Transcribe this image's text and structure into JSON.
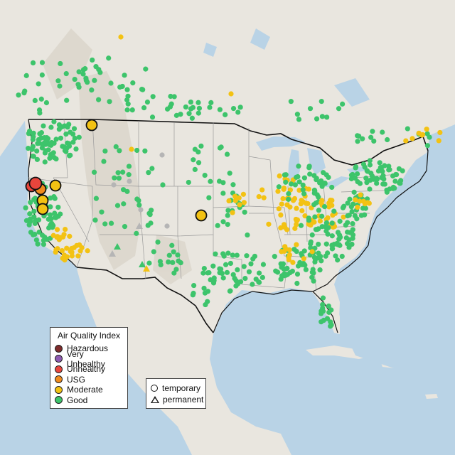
{
  "colors": {
    "ocean": "#b9d3e6",
    "land": "#e9e6df",
    "mountain_shade": "#d9d3c8",
    "hazardous": "#7e2b2b",
    "very_unhealthy": "#8e5ab2",
    "unhealthy": "#e8453c",
    "usg": "#f08b1d",
    "moderate": "#f3c213",
    "good": "#3dc46b",
    "no_data": "#b5b5b5"
  },
  "legend": {
    "title": "Air Quality Index",
    "items": [
      {
        "label": "Hazardous",
        "color": "#7e2b2b"
      },
      {
        "label": "Very Unhealthy",
        "color": "#8e5ab2"
      },
      {
        "label": "Unhealthy",
        "color": "#e8453c"
      },
      {
        "label": "USG",
        "color": "#f08b1d"
      },
      {
        "label": "Moderate",
        "color": "#f3c213"
      },
      {
        "label": "Good",
        "color": "#3dc46b"
      }
    ]
  },
  "shape_legend": {
    "temporary": "temporary",
    "permanent": "permanent"
  }
}
